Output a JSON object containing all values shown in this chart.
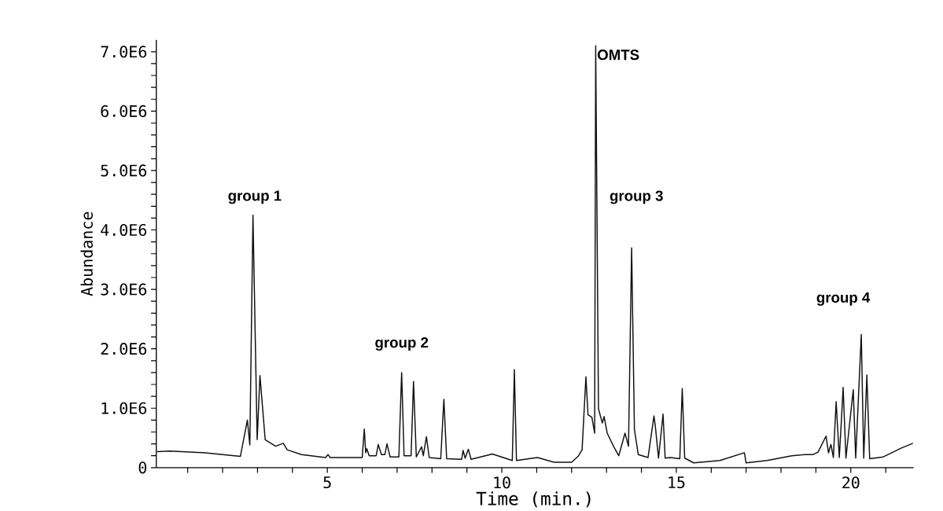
{
  "chart_data": {
    "type": "line",
    "xlabel": "Time (min.)",
    "ylabel": "Abundance",
    "xlim": [
      0.1,
      21.8
    ],
    "ylim": [
      0,
      7200000
    ],
    "xticks": [
      {
        "value": 1,
        "label": null
      },
      {
        "value": 2,
        "label": null
      },
      {
        "value": 3,
        "label": null
      },
      {
        "value": 4,
        "label": null
      },
      5,
      {
        "value": 6,
        "label": null
      },
      {
        "value": 7,
        "label": null
      },
      {
        "value": 8,
        "label": null
      },
      {
        "value": 9,
        "label": null
      },
      10,
      {
        "value": 11,
        "label": null
      },
      {
        "value": 12,
        "label": null
      },
      {
        "value": 13,
        "label": null
      },
      {
        "value": 14,
        "label": null
      },
      15,
      {
        "value": 16,
        "label": null
      },
      {
        "value": 17,
        "label": null
      },
      {
        "value": 18,
        "label": null
      },
      {
        "value": 19,
        "label": null
      },
      20,
      {
        "value": 21,
        "label": null
      }
    ],
    "yticks": [
      0,
      {
        "value": 200000,
        "label": null
      },
      {
        "value": 400000,
        "label": null
      },
      {
        "value": 600000,
        "label": null
      },
      {
        "value": 800000,
        "label": null
      },
      {
        "value": 1000000,
        "label": "1.0E6"
      },
      {
        "value": 1200000,
        "label": null
      },
      {
        "value": 1400000,
        "label": null
      },
      {
        "value": 1600000,
        "label": null
      },
      {
        "value": 1800000,
        "label": null
      },
      {
        "value": 2000000,
        "label": "2.0E6"
      },
      {
        "value": 2200000,
        "label": null
      },
      {
        "value": 2400000,
        "label": null
      },
      {
        "value": 2600000,
        "label": null
      },
      {
        "value": 2800000,
        "label": null
      },
      {
        "value": 3000000,
        "label": "3.0E6"
      },
      {
        "value": 3200000,
        "label": null
      },
      {
        "value": 3400000,
        "label": null
      },
      {
        "value": 3600000,
        "label": null
      },
      {
        "value": 3800000,
        "label": null
      },
      {
        "value": 4000000,
        "label": "4.0E6"
      },
      {
        "value": 4200000,
        "label": null
      },
      {
        "value": 4400000,
        "label": null
      },
      {
        "value": 4600000,
        "label": null
      },
      {
        "value": 4800000,
        "label": null
      },
      {
        "value": 5000000,
        "label": "5.0E6"
      },
      {
        "value": 5200000,
        "label": null
      },
      {
        "value": 5400000,
        "label": null
      },
      {
        "value": 5600000,
        "label": null
      },
      {
        "value": 5800000,
        "label": null
      },
      {
        "value": 6000000,
        "label": "6.0E6"
      },
      {
        "value": 6200000,
        "label": null
      },
      {
        "value": 6400000,
        "label": null
      },
      {
        "value": 6600000,
        "label": null
      },
      {
        "value": 6800000,
        "label": null
      },
      {
        "value": 7000000,
        "label": "7.0E6"
      }
    ],
    "x": [
      0.12,
      0.5,
      1.5,
      2.51,
      2.71,
      2.78,
      2.87,
      2.99,
      3.07,
      3.22,
      3.52,
      3.74,
      3.85,
      4.26,
      4.95,
      5.02,
      5.08,
      5.76,
      6.0,
      6.06,
      6.1,
      6.13,
      6.2,
      6.4,
      6.46,
      6.55,
      6.65,
      6.71,
      6.8,
      7.05,
      7.13,
      7.2,
      7.4,
      7.47,
      7.55,
      7.7,
      7.75,
      7.84,
      7.92,
      8.25,
      8.34,
      8.42,
      8.85,
      8.89,
      8.95,
      9.04,
      9.12,
      9.73,
      10.3,
      10.36,
      10.42,
      11.02,
      11.5,
      12.0,
      12.2,
      12.3,
      12.41,
      12.47,
      12.58,
      12.66,
      12.69,
      12.77,
      12.88,
      12.93,
      13.02,
      13.2,
      13.35,
      13.53,
      13.63,
      13.72,
      13.8,
      13.91,
      14.19,
      14.36,
      14.4,
      14.49,
      14.62,
      14.68,
      14.83,
      15.1,
      15.17,
      15.24,
      15.5,
      16.25,
      16.95,
      17.0,
      17.6,
      18.31,
      18.69,
      18.92,
      19.06,
      19.29,
      19.36,
      19.43,
      19.5,
      19.58,
      19.67,
      19.72,
      19.78,
      19.86,
      20.07,
      20.14,
      20.3,
      20.37,
      20.46,
      20.54,
      20.93,
      21.45,
      21.78
    ],
    "values": [
      270000,
      280000,
      250000,
      190000,
      800000,
      380000,
      4250000,
      470000,
      1550000,
      470000,
      360000,
      410000,
      300000,
      220000,
      170000,
      220000,
      170000,
      170000,
      170000,
      650000,
      250000,
      320000,
      200000,
      200000,
      390000,
      220000,
      220000,
      400000,
      180000,
      180000,
      1600000,
      200000,
      200000,
      1450000,
      180000,
      350000,
      200000,
      520000,
      170000,
      150000,
      1150000,
      150000,
      140000,
      290000,
      160000,
      310000,
      140000,
      230000,
      120000,
      1650000,
      120000,
      170000,
      90000,
      90000,
      200000,
      300000,
      1530000,
      890000,
      850000,
      580000,
      7100000,
      990000,
      750000,
      860000,
      580000,
      360000,
      200000,
      580000,
      360000,
      3700000,
      640000,
      220000,
      170000,
      870000,
      690000,
      160000,
      900000,
      160000,
      170000,
      150000,
      1330000,
      160000,
      80000,
      120000,
      250000,
      80000,
      120000,
      200000,
      220000,
      220000,
      260000,
      530000,
      250000,
      390000,
      170000,
      1110000,
      170000,
      690000,
      1350000,
      160000,
      1310000,
      160000,
      2240000,
      160000,
      1560000,
      150000,
      180000,
      330000,
      410000
    ],
    "color": "#111111",
    "line_style": "solid",
    "annotations": [
      "group 1",
      "group 2",
      "OMTS",
      "group 3",
      "group 4"
    ]
  }
}
